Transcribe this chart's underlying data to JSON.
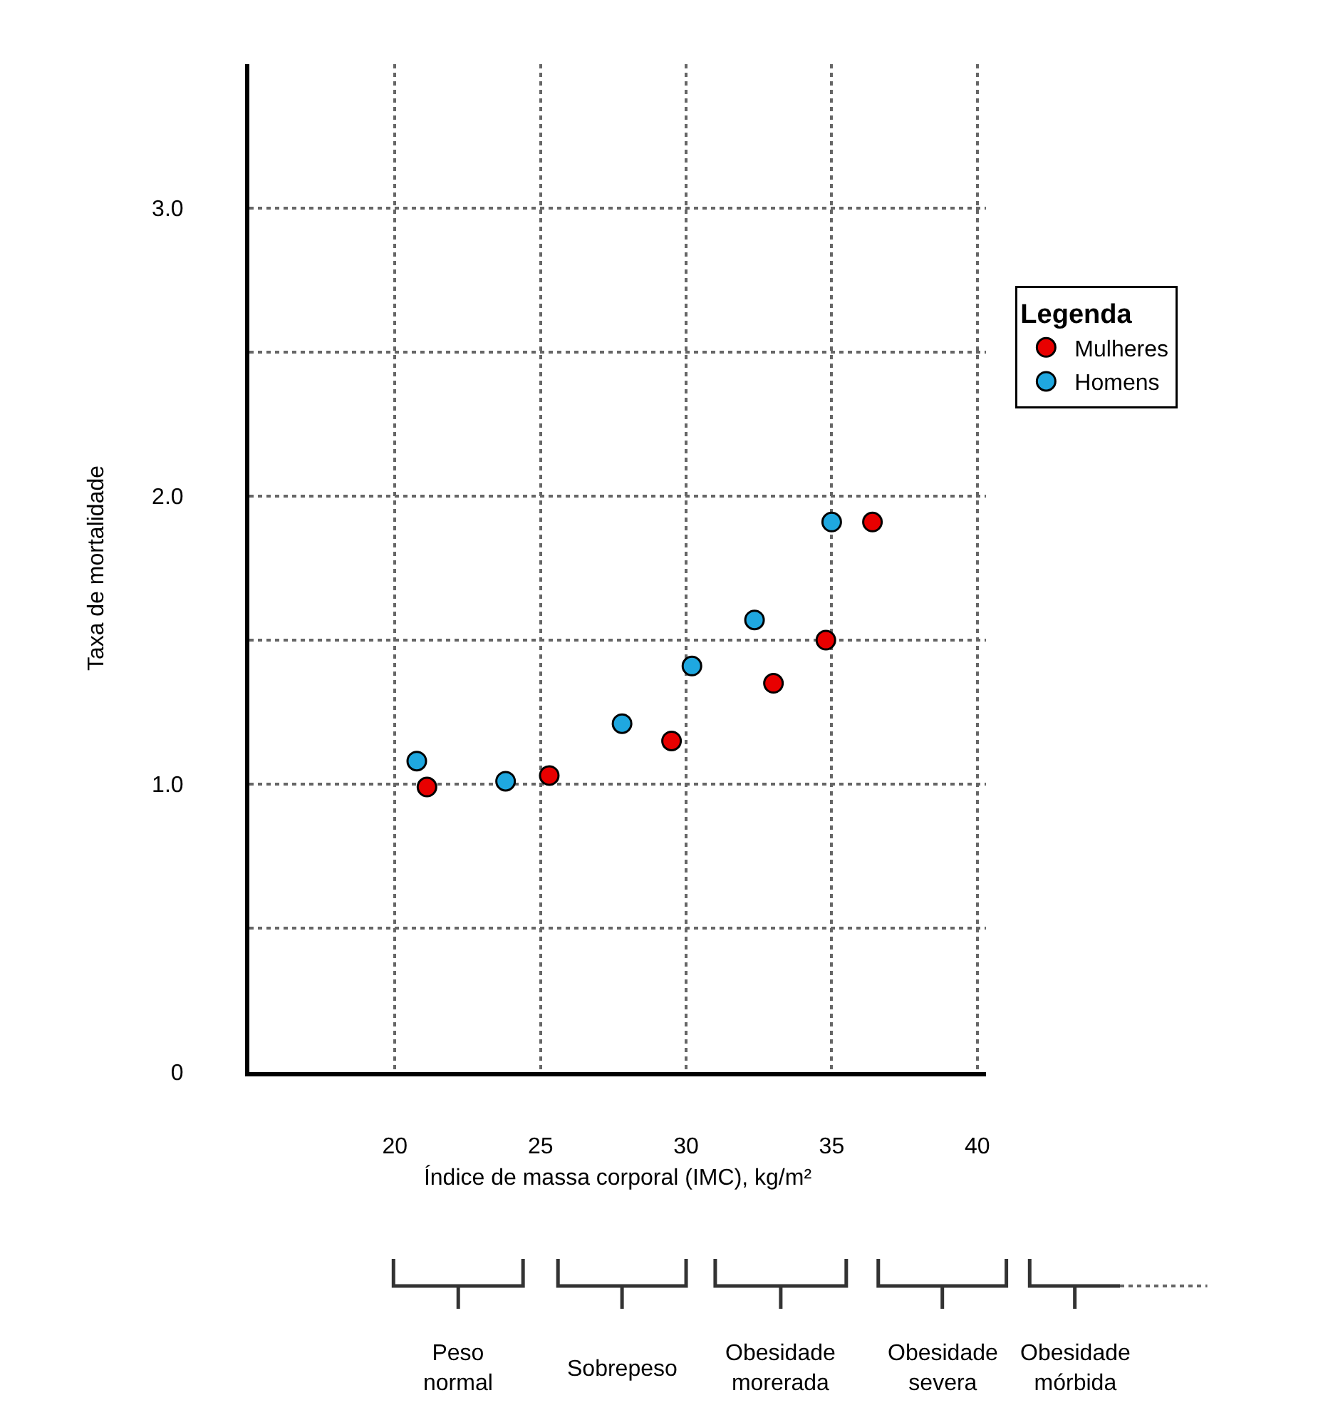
{
  "chart_data": {
    "type": "scatter",
    "xlabel": "Índice de massa corporal (IMC), kg/m²",
    "ylabel": "Taxa de mortalidade",
    "legend_title": "Legenda",
    "xlim": [
      15,
      40.3
    ],
    "xticks": [
      20,
      25,
      30,
      35,
      40
    ],
    "ylim": [
      0,
      3.5
    ],
    "yticks": [
      0,
      {
        "value": 0.5,
        "label": null
      },
      {
        "value": 1.0,
        "label": "1.0"
      },
      {
        "value": 1.5,
        "label": null
      },
      {
        "value": 2.0,
        "label": "2.0"
      },
      {
        "value": 2.5,
        "label": null
      },
      {
        "value": 3.0,
        "label": "3.0"
      }
    ],
    "grid": true,
    "legend": "right",
    "marker": "circle",
    "series": [
      {
        "name": "Mulheres",
        "color": "#e80000",
        "x": [
          21.1,
          25.3,
          29.5,
          33.0,
          34.8,
          36.4
        ],
        "values": [
          0.99,
          1.03,
          1.15,
          1.35,
          1.5,
          1.91
        ]
      },
      {
        "name": "Homens",
        "color": "#1fa8e0",
        "x": [
          20.75,
          23.8,
          27.8,
          30.2,
          32.35,
          35.0
        ],
        "values": [
          1.08,
          1.01,
          1.21,
          1.41,
          1.57,
          1.91
        ]
      }
    ],
    "annotations": [
      "Peso\nnormal",
      "Sobrepeso",
      "Obesidade\nmorerada",
      "Obesidade\nsevera",
      "Obesidade\nmórbida"
    ]
  }
}
